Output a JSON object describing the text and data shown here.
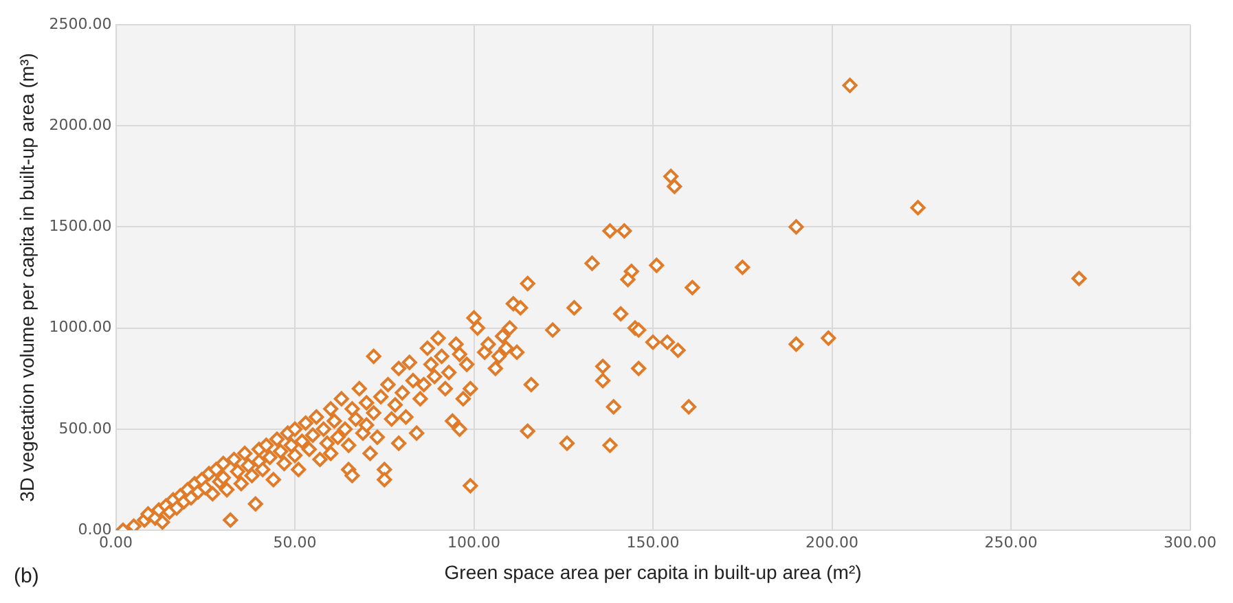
{
  "chart_data": {
    "type": "scatter",
    "xlabel": "Green space area per capita in built-up area (m²)",
    "ylabel": "3D vegetation volume per capita in built-up area (m³)",
    "annotations": [
      "(b)"
    ],
    "xlim": [
      0,
      300
    ],
    "ylim": [
      0,
      2500
    ],
    "xticks": [
      {
        "value": 0,
        "label": "0.00"
      },
      {
        "value": 50,
        "label": "50.00"
      },
      {
        "value": 100,
        "label": "100.00"
      },
      {
        "value": 150,
        "label": "150.00"
      },
      {
        "value": 200,
        "label": "200.00"
      },
      {
        "value": 250,
        "label": "250.00"
      },
      {
        "value": 300,
        "label": "300.00"
      }
    ],
    "yticks": [
      {
        "value": 0,
        "label": "0.00"
      },
      {
        "value": 500,
        "label": "500.00"
      },
      {
        "value": 1000,
        "label": "1000.00"
      },
      {
        "value": 1500,
        "label": "1500.00"
      },
      {
        "value": 2000,
        "label": "2000.00"
      },
      {
        "value": 2500,
        "label": "2500.00"
      }
    ],
    "grid": true,
    "legend": false,
    "marker": "diamond",
    "series": [
      {
        "color": "#e07b2a",
        "x": [
          2,
          5,
          8,
          9,
          11,
          12,
          13,
          14,
          15,
          16,
          17,
          18,
          19,
          20,
          21,
          22,
          23,
          24,
          25,
          26,
          27,
          28,
          29,
          30,
          30,
          31,
          32,
          33,
          34,
          35,
          36,
          37,
          38,
          39,
          40,
          40,
          41,
          42,
          43,
          44,
          45,
          46,
          47,
          48,
          49,
          50,
          50,
          51,
          52,
          53,
          54,
          55,
          56,
          57,
          58,
          59,
          60,
          60,
          61,
          62,
          63,
          64,
          65,
          65,
          66,
          66,
          67,
          68,
          69,
          70,
          70,
          71,
          72,
          72,
          73,
          74,
          75,
          75,
          76,
          77,
          78,
          79,
          79,
          80,
          81,
          82,
          83,
          84,
          85,
          86,
          87,
          88,
          89,
          90,
          91,
          92,
          93,
          94,
          95,
          96,
          96,
          97,
          98,
          99,
          99,
          100,
          101,
          103,
          104,
          106,
          107,
          108,
          109,
          110,
          112,
          111,
          113,
          115,
          128,
          122,
          115,
          116,
          126,
          138,
          139,
          136,
          136,
          146,
          133,
          138,
          142,
          151,
          144,
          143,
          141,
          145,
          146,
          150,
          154,
          157,
          155,
          156,
          160,
          161,
          175,
          190,
          190,
          199,
          205,
          224,
          269
        ],
        "values": [
          0,
          20,
          50,
          80,
          60,
          100,
          40,
          120,
          90,
          150,
          110,
          170,
          140,
          200,
          160,
          230,
          190,
          250,
          210,
          280,
          180,
          300,
          240,
          330,
          260,
          200,
          50,
          350,
          290,
          230,
          380,
          320,
          270,
          130,
          400,
          340,
          300,
          420,
          360,
          250,
          450,
          390,
          330,
          480,
          420,
          370,
          500,
          300,
          440,
          530,
          400,
          470,
          560,
          350,
          500,
          430,
          600,
          380,
          540,
          460,
          650,
          500,
          420,
          300,
          270,
          600,
          550,
          700,
          480,
          630,
          520,
          380,
          860,
          580,
          460,
          660,
          300,
          250,
          720,
          550,
          620,
          800,
          430,
          680,
          560,
          830,
          740,
          480,
          650,
          720,
          900,
          820,
          760,
          950,
          860,
          700,
          780,
          540,
          920,
          870,
          500,
          650,
          820,
          700,
          220,
          1050,
          1000,
          880,
          920,
          800,
          860,
          960,
          900,
          1000,
          880,
          1120,
          1100,
          1220,
          1100,
          990,
          490,
          720,
          430,
          420,
          610,
          810,
          740,
          800,
          1320,
          1480,
          1480,
          1310,
          1280,
          1240,
          1070,
          1000,
          990,
          930,
          930,
          890,
          1750,
          1700,
          610,
          1200,
          1300,
          1500,
          920,
          950,
          2200,
          1595,
          1245
        ]
      }
    ]
  }
}
